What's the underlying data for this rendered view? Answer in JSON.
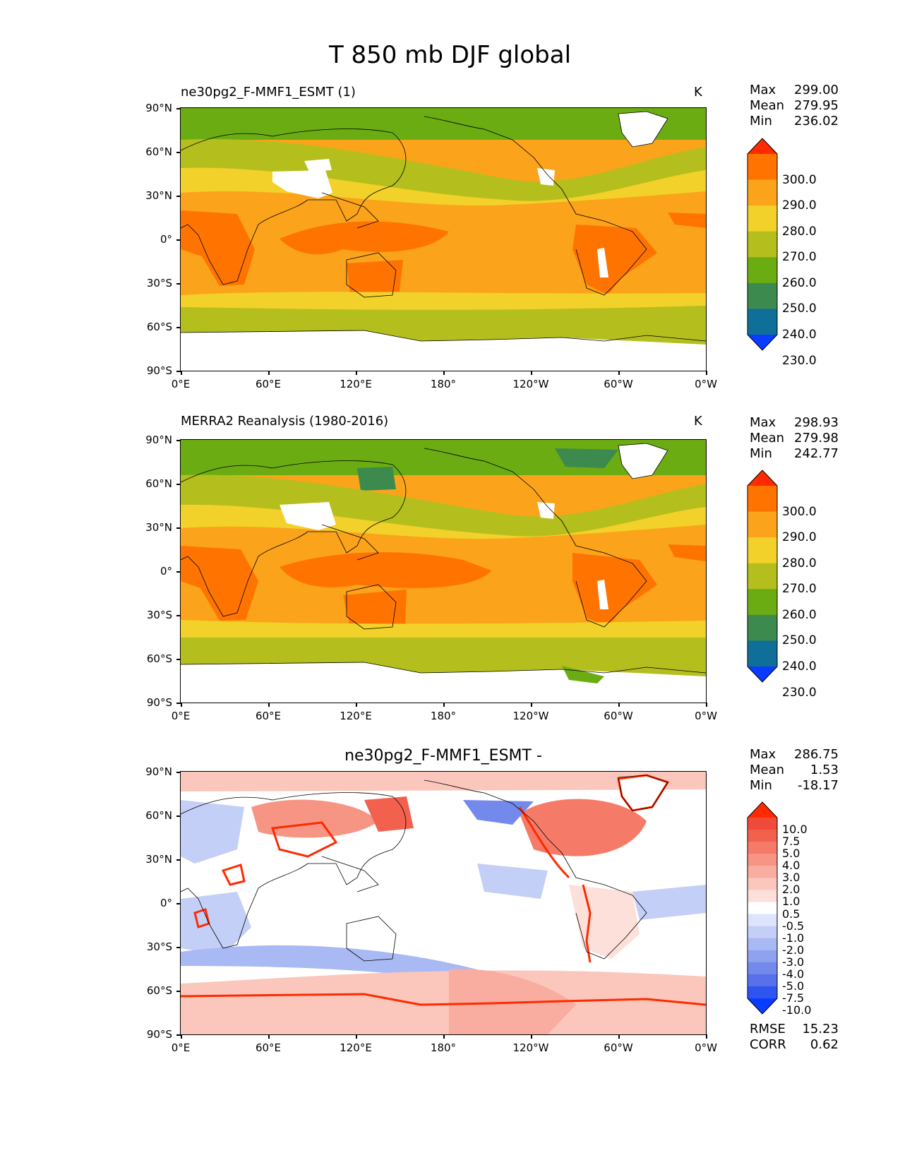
{
  "figure": {
    "title": "T 850 mb DJF global"
  },
  "axes": {
    "lat_ticks": [
      "90°N",
      "60°N",
      "30°N",
      "0°",
      "30°S",
      "60°S",
      "90°S"
    ],
    "lon_ticks": [
      "0°E",
      "60°E",
      "120°E",
      "180°",
      "120°W",
      "60°W",
      "0°W"
    ]
  },
  "panels": [
    {
      "left_title": "ne30pg2_F-MMF1_ESMT (1)",
      "center_title": "",
      "units": "K",
      "stats": {
        "max_label": "Max",
        "max": "299.00",
        "mean_label": "Mean",
        "mean": "279.95",
        "min_label": "Min",
        "min": "236.02"
      },
      "colorbar": {
        "levels": [
          "300.0",
          "290.0",
          "280.0",
          "270.0",
          "260.0",
          "250.0",
          "240.0",
          "230.0"
        ],
        "colors": [
          "#ff2a00",
          "#ff7400",
          "#fba31a",
          "#f2d12a",
          "#b4bf1e",
          "#6aac12",
          "#3d8a4e",
          "#0f6f98",
          "#0a3cff"
        ]
      }
    },
    {
      "left_title": "MERRA2 Reanalysis (1980-2016)",
      "center_title": "",
      "units": "K",
      "stats": {
        "max_label": "Max",
        "max": "298.93",
        "mean_label": "Mean",
        "mean": "279.98",
        "min_label": "Min",
        "min": "242.77"
      },
      "colorbar": {
        "levels": [
          "300.0",
          "290.0",
          "280.0",
          "270.0",
          "260.0",
          "250.0",
          "240.0",
          "230.0"
        ],
        "colors": [
          "#ff2a00",
          "#ff7400",
          "#fba31a",
          "#f2d12a",
          "#b4bf1e",
          "#6aac12",
          "#3d8a4e",
          "#0f6f98",
          "#0a3cff"
        ]
      }
    },
    {
      "left_title": "",
      "center_title": "ne30pg2_F-MMF1_ESMT -",
      "units": "",
      "stats": {
        "max_label": "Max",
        "max": "286.75",
        "mean_label": "Mean",
        "mean": "1.53",
        "min_label": "Min",
        "min": "-18.17"
      },
      "colorbar": {
        "levels": [
          "10.0",
          "7.5",
          "5.0",
          "4.0",
          "3.0",
          "2.0",
          "1.0",
          "0.5",
          "-0.5",
          "-1.0",
          "-2.0",
          "-3.0",
          "-4.0",
          "-5.0",
          "-7.5",
          "-10.0"
        ],
        "colors": [
          "#ff2a00",
          "#ef4a3a",
          "#f2604e",
          "#f57b68",
          "#f79584",
          "#f9ada0",
          "#fbc6bc",
          "#fde0da",
          "#ffffff",
          "#dde4fb",
          "#c4cff7",
          "#a9b9f3",
          "#8ea2ef",
          "#7389ec",
          "#5870ea",
          "#2e55f0",
          "#0a3cff"
        ]
      },
      "metrics": {
        "rmse_label": "RMSE",
        "rmse": "15.23",
        "corr_label": "CORR",
        "corr": "0.62"
      }
    }
  ]
}
